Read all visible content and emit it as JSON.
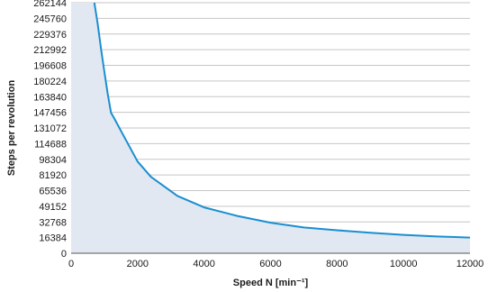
{
  "chart_data": {
    "type": "area",
    "title": "",
    "xlabel": "Speed N [min⁻¹]",
    "ylabel": "Steps per revolution",
    "xlim": [
      0,
      12000
    ],
    "ylim": [
      0,
      262144
    ],
    "x_ticks": [
      "0",
      "2000",
      "4000",
      "6000",
      "8000",
      "10000",
      "12000"
    ],
    "y_ticks": [
      "0",
      "16384",
      "32768",
      "49152",
      "65536",
      "81920",
      "98304",
      "114688",
      "131072",
      "147456",
      "163840",
      "180224",
      "196608",
      "212992",
      "229376",
      "245760",
      "262144"
    ],
    "grid": "horizontal",
    "series": [
      {
        "line_color": "#1a8fd0",
        "fill_color": "#e1e8f1",
        "x": [
          700,
          800,
          900,
          1000,
          1100,
          1200,
          1300,
          1500,
          2000,
          2400,
          3200,
          4000,
          5000,
          6000,
          7000,
          8000,
          9000,
          10000,
          11000,
          12000
        ],
        "y": [
          262144,
          240000,
          214000,
          190000,
          167000,
          147000,
          141000,
          128000,
          96000,
          80000,
          60000,
          48000,
          39000,
          32000,
          27000,
          24000,
          21500,
          19200,
          17500,
          16384
        ]
      }
    ]
  }
}
